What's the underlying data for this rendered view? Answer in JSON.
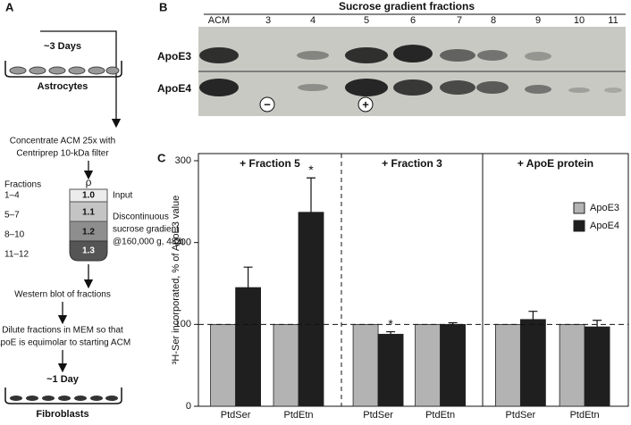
{
  "panel_a": {
    "label": "A",
    "step1": "~3 Days",
    "cells1": "Astrocytes",
    "concentrate": [
      "Concentrate ACM 25x with",
      "Centriprep 10-kDa filter"
    ],
    "fractions_title": "Fractions",
    "rho": "ρ",
    "fractions": [
      "1–4",
      "5–7",
      "8–10",
      "11–12"
    ],
    "densities": [
      "1.0",
      "1.1",
      "1.2",
      "1.3"
    ],
    "notes": [
      "Input",
      "Discontinuous",
      "sucrose gradient",
      "@160,000 g, 48 h"
    ],
    "western": "Western blot of fractions",
    "dilute": [
      "Dilute fractions in MEM so that",
      "ApoE is equimolar to starting ACM"
    ],
    "step2": "~1 Day",
    "cells2": "Fibroblasts"
  },
  "panel_b": {
    "label": "B",
    "title": "Sucrose gradient fractions",
    "lanes": [
      "ACM",
      "3",
      "4",
      "5",
      "6",
      "7",
      "8",
      "9",
      "10",
      "11"
    ],
    "rows": [
      "ApoE3",
      "ApoE4"
    ],
    "minus": "−",
    "plus": "+"
  },
  "panel_c_label": "C",
  "chart_data": {
    "type": "bar",
    "y_label": "³H-Ser incorporated, % of ApoE3 value",
    "groups": [
      "+ Fraction 5",
      "+ Fraction 3",
      "+ ApoE protein"
    ],
    "categories": [
      "PtdSer",
      "PtdEtn",
      "PtdSer",
      "PtdEtn",
      "PtdSer",
      "PtdEtn"
    ],
    "series": [
      {
        "name": "ApoE3",
        "color": "#b3b3b3",
        "values": [
          100,
          100,
          100,
          100,
          100,
          100
        ]
      },
      {
        "name": "ApoE4",
        "color": "#1f1f1f",
        "values": [
          145,
          237,
          88,
          100,
          106,
          97
        ],
        "errors": [
          25,
          42,
          3,
          2,
          10,
          8
        ],
        "markers": [
          null,
          "*",
          "*",
          null,
          null,
          null
        ]
      }
    ],
    "reference_line": 100,
    "ylim": [
      0,
      300
    ],
    "yticks": [
      0,
      100,
      200,
      300
    ]
  }
}
